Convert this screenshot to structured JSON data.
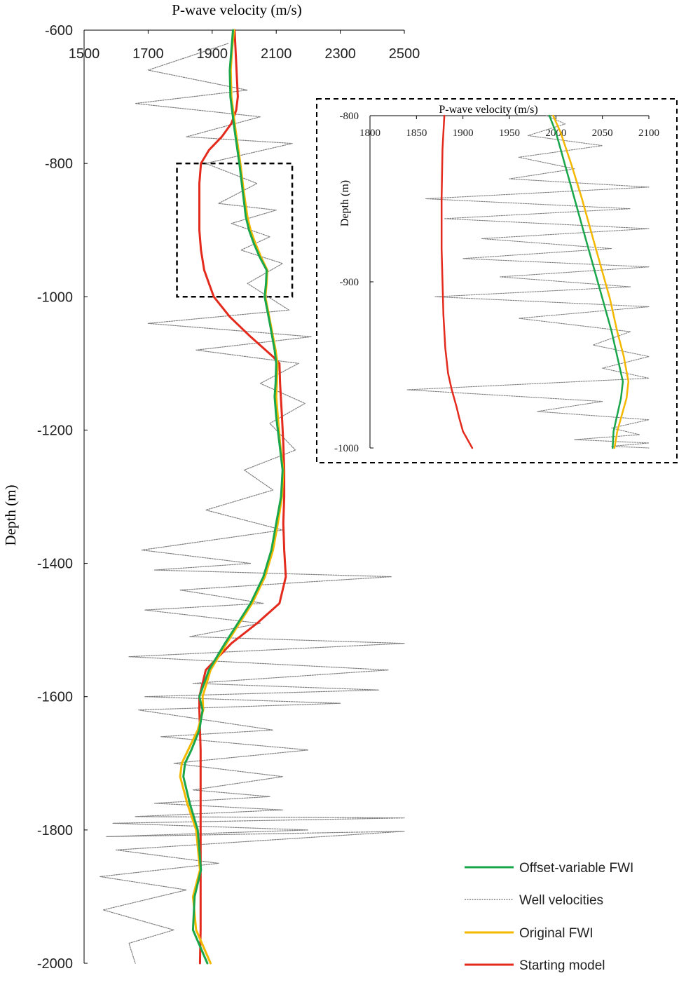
{
  "chart_data": [
    {
      "type": "line",
      "title": "",
      "xlabel": "P-wave velocity (m/s)",
      "ylabel": "Depth (m)",
      "xlim": [
        1500,
        2500
      ],
      "ylim": [
        -2000,
        -600
      ],
      "xticks": [
        "1500",
        "1700",
        "1900",
        "2100",
        "2300",
        "2500"
      ],
      "yticks": [
        "-600",
        "-800",
        "-1000",
        "-1200",
        "-1400",
        "-1600",
        "-1800",
        "-2000"
      ],
      "grid": false,
      "legend_position": "bottom-right",
      "zoom_box": {
        "x": [
          1790,
          2150
        ],
        "y": [
          -1000,
          -800
        ]
      },
      "series": [
        {
          "name": "Offset-variable FWI",
          "color": "#1aa64a",
          "x": [
            1965,
            1960,
            1955,
            1957,
            1970,
            1985,
            1995,
            2000,
            2005,
            2015,
            2030,
            2048,
            2070,
            2068,
            2064,
            2080,
            2095,
            2100,
            2098,
            2095,
            2100,
            2110,
            2120,
            2115,
            2100,
            2085,
            2060,
            2020,
            1980,
            1940,
            1890,
            1860,
            1870,
            1860,
            1835,
            1815,
            1810,
            1830,
            1855,
            1865,
            1845,
            1840,
            1885
          ],
          "y": [
            -600,
            -630,
            -660,
            -700,
            -750,
            -800,
            -840,
            -860,
            -880,
            -900,
            -920,
            -940,
            -960,
            -980,
            -1000,
            -1040,
            -1080,
            -1100,
            -1130,
            -1150,
            -1180,
            -1220,
            -1260,
            -1300,
            -1340,
            -1380,
            -1420,
            -1460,
            -1490,
            -1520,
            -1560,
            -1600,
            -1620,
            -1650,
            -1680,
            -1700,
            -1720,
            -1760,
            -1800,
            -1860,
            -1900,
            -1950,
            -2000
          ]
        },
        {
          "name": "Well velocities",
          "color": "#808080",
          "x": [
            1950,
            1700,
            2010,
            1660,
            2050,
            1820,
            2150,
            1880,
            2040,
            1920,
            2100,
            1960,
            2080,
            1990,
            2120,
            2010,
            2140,
            1700,
            2210,
            1850,
            2170,
            2050,
            2190,
            2080,
            2160,
            2000,
            2090,
            1880,
            2120,
            1680,
            2020,
            1720,
            2460,
            1800,
            2060,
            1690,
            2050,
            1830,
            2500,
            1640,
            2450,
            1840,
            2420,
            1690,
            2300,
            1670,
            2090,
            1740,
            2200,
            1780,
            2120,
            1840,
            2080,
            1720,
            2120,
            1660,
            2500,
            1590,
            2200,
            1570,
            2500,
            1600,
            1920,
            1550,
            1820,
            1560,
            1780,
            1640,
            1660
          ],
          "y": [
            -620,
            -660,
            -690,
            -710,
            -730,
            -760,
            -770,
            -800,
            -830,
            -860,
            -870,
            -890,
            -910,
            -930,
            -950,
            -980,
            -1020,
            -1040,
            -1060,
            -1080,
            -1100,
            -1130,
            -1160,
            -1190,
            -1230,
            -1260,
            -1290,
            -1320,
            -1350,
            -1380,
            -1400,
            -1410,
            -1420,
            -1440,
            -1460,
            -1470,
            -1490,
            -1510,
            -1520,
            -1540,
            -1560,
            -1580,
            -1590,
            -1600,
            -1610,
            -1620,
            -1650,
            -1660,
            -1680,
            -1700,
            -1720,
            -1740,
            -1750,
            -1760,
            -1770,
            -1780,
            -1782,
            -1790,
            -1800,
            -1810,
            -1802,
            -1830,
            -1850,
            -1870,
            -1890,
            -1920,
            -1950,
            -1970,
            -2000
          ]
        },
        {
          "name": "Original FWI",
          "color": "#f5b800",
          "x": [
            1968,
            1962,
            1958,
            1960,
            1973,
            1988,
            1998,
            2004,
            2010,
            2020,
            2035,
            2052,
            2072,
            2070,
            2066,
            2082,
            2098,
            2104,
            2102,
            2100,
            2105,
            2112,
            2122,
            2118,
            2105,
            2090,
            2065,
            2025,
            1985,
            1945,
            1895,
            1870,
            1872,
            1855,
            1825,
            1805,
            1800,
            1822,
            1850,
            1862,
            1840,
            1850,
            1895
          ],
          "y": [
            -600,
            -630,
            -660,
            -700,
            -750,
            -800,
            -840,
            -860,
            -880,
            -900,
            -920,
            -940,
            -960,
            -980,
            -1000,
            -1040,
            -1080,
            -1100,
            -1130,
            -1150,
            -1180,
            -1220,
            -1260,
            -1300,
            -1340,
            -1380,
            -1420,
            -1460,
            -1490,
            -1520,
            -1560,
            -1600,
            -1620,
            -1650,
            -1680,
            -1700,
            -1720,
            -1760,
            -1800,
            -1860,
            -1900,
            -1950,
            -2000
          ]
        },
        {
          "name": "Starting model",
          "color": "#e32a1c",
          "x": [
            1970,
            1975,
            1980,
            1975,
            1960,
            1930,
            1890,
            1865,
            1860,
            1860,
            1860,
            1865,
            1875,
            1890,
            1905,
            1955,
            2020,
            2090,
            2110,
            2112,
            2118,
            2122,
            2125,
            2125,
            2122,
            2125,
            2130,
            2110,
            2040,
            1960,
            1880,
            1860,
            1860,
            1862,
            1864,
            1864,
            1864,
            1864,
            1864,
            1864,
            1864,
            1864,
            1862
          ],
          "y": [
            -600,
            -650,
            -700,
            -720,
            -740,
            -760,
            -780,
            -800,
            -830,
            -860,
            -900,
            -930,
            -960,
            -980,
            -1000,
            -1030,
            -1060,
            -1090,
            -1100,
            -1130,
            -1180,
            -1220,
            -1260,
            -1300,
            -1340,
            -1380,
            -1420,
            -1460,
            -1490,
            -1520,
            -1560,
            -1600,
            -1620,
            -1650,
            -1680,
            -1700,
            -1720,
            -1760,
            -1800,
            -1860,
            -1900,
            -1950,
            -2000
          ]
        }
      ]
    },
    {
      "type": "line",
      "title": "",
      "xlabel": "P-wave velocity (m/s)",
      "ylabel": "Depth (m)",
      "xlim": [
        1800,
        2100
      ],
      "ylim": [
        -1000,
        -800
      ],
      "xticks": [
        "1800",
        "1850",
        "1900",
        "1950",
        "2000",
        "2050",
        "2100"
      ],
      "yticks": [
        "-800",
        "-900",
        "-1000"
      ],
      "grid": false,
      "series": [
        {
          "name": "Offset-variable FWI",
          "color": "#1aa64a",
          "x": [
            1993,
            2000,
            2010,
            2020,
            2030,
            2040,
            2050,
            2060,
            2066,
            2072,
            2070,
            2066,
            2062,
            2061
          ],
          "y": [
            -800,
            -810,
            -830,
            -850,
            -870,
            -890,
            -910,
            -930,
            -945,
            -960,
            -970,
            -980,
            -990,
            -1000
          ]
        },
        {
          "name": "Well velocities",
          "color": "#808080",
          "x": [
            1990,
            2010,
            1970,
            2050,
            1960,
            2020,
            1950,
            2100,
            1860,
            2080,
            1880,
            2100,
            1920,
            2060,
            1900,
            2100,
            1940,
            2080,
            1870,
            2100,
            1960,
            2080,
            2040,
            2100,
            2050,
            2100,
            1840,
            2050,
            1980,
            2100,
            2060,
            2090,
            2020,
            2100,
            2060,
            2100
          ],
          "y": [
            -800,
            -805,
            -812,
            -818,
            -825,
            -832,
            -838,
            -843,
            -850,
            -856,
            -862,
            -868,
            -874,
            -880,
            -886,
            -891,
            -897,
            -903,
            -909,
            -915,
            -922,
            -930,
            -938,
            -945,
            -952,
            -958,
            -965,
            -972,
            -978,
            -983,
            -988,
            -992,
            -995,
            -997,
            -999,
            -1000
          ]
        },
        {
          "name": "Original FWI",
          "color": "#f5b800",
          "x": [
            1997,
            2005,
            2017,
            2028,
            2038,
            2048,
            2058,
            2066,
            2073,
            2078,
            2076,
            2071,
            2066,
            2063
          ],
          "y": [
            -800,
            -810,
            -830,
            -850,
            -870,
            -890,
            -910,
            -930,
            -945,
            -960,
            -970,
            -980,
            -990,
            -1000
          ]
        },
        {
          "name": "Starting model",
          "color": "#e32a1c",
          "x": [
            1880,
            1878,
            1877,
            1877,
            1878,
            1879,
            1881,
            1884,
            1888,
            1893,
            1896,
            1900,
            1906,
            1910
          ],
          "y": [
            -800,
            -820,
            -850,
            -880,
            -900,
            -920,
            -940,
            -955,
            -965,
            -975,
            -982,
            -990,
            -996,
            -1000
          ]
        }
      ]
    }
  ]
}
